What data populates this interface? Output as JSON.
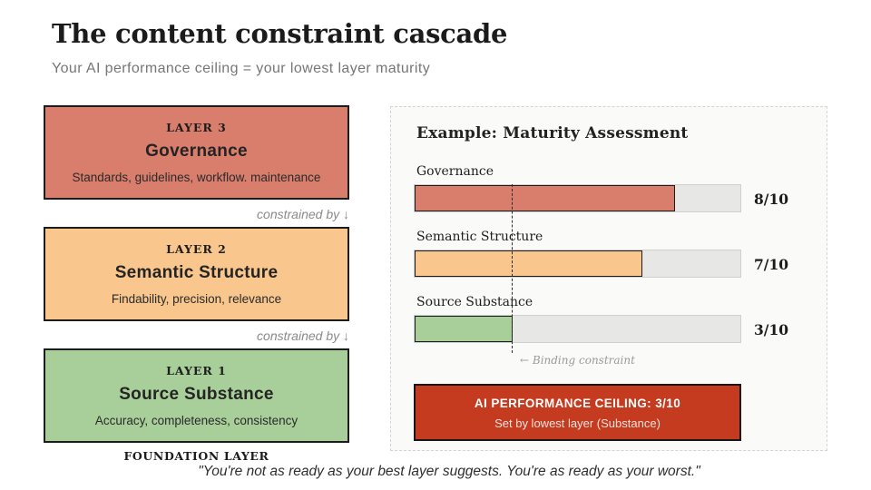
{
  "page": {
    "title": "The content constraint cascade",
    "subtitle": "Your AI performance ceiling = your lowest layer maturity",
    "foundation_label": "FOUNDATION LAYER",
    "footer_quote": "\"You're not as ready as your best layer suggests. You're as ready as your worst.\""
  },
  "cascade": {
    "constrained_by_label": "constrained by ↓",
    "layers": [
      {
        "eyebrow": "LAYER 3",
        "title": "Governance",
        "description": "Standards, guidelines, workflow. maintenance",
        "color": "#D97D6C"
      },
      {
        "eyebrow": "LAYER 2",
        "title": "Semantic Structure",
        "description": "Findability, precision, relevance",
        "color": "#F9C78D"
      },
      {
        "eyebrow": "LAYER 1",
        "title": "Source Substance",
        "description": "Accuracy, completeness, consistency",
        "color": "#A8CF99"
      }
    ]
  },
  "assessment": {
    "title": "Example: Maturity Assessment",
    "binding_constraint_label": "← Binding constraint",
    "bars": [
      {
        "label": "Governance",
        "score": 8,
        "max": 10,
        "display": "8/10",
        "color": "#D97D6C"
      },
      {
        "label": "Semantic Structure",
        "score": 7,
        "max": 10,
        "display": "7/10",
        "color": "#F9C78D"
      },
      {
        "label": "Source Substance",
        "score": 3,
        "max": 10,
        "display": "3/10",
        "color": "#A8CF99"
      }
    ],
    "ceiling": {
      "title": "AI PERFORMANCE CEILING: 3/10",
      "subtitle": "Set by lowest layer (Substance)",
      "color": "#C43B20"
    }
  },
  "chart_data": {
    "type": "bar",
    "orientation": "horizontal",
    "title": "Example: Maturity Assessment",
    "categories": [
      "Governance",
      "Semantic Structure",
      "Source Substance"
    ],
    "values": [
      8,
      7,
      3
    ],
    "value_labels": [
      "8/10",
      "7/10",
      "3/10"
    ],
    "xlim": [
      0,
      10
    ],
    "annotations": [
      "← Binding constraint at 3/10"
    ],
    "colors": [
      "#D97D6C",
      "#F9C78D",
      "#A8CF99"
    ]
  }
}
